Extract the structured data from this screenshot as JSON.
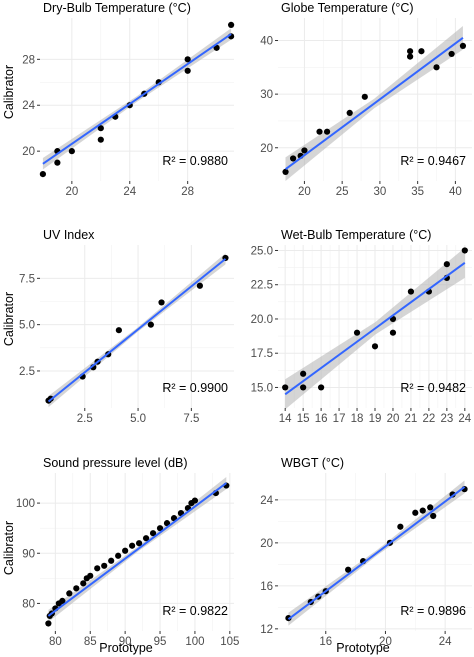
{
  "y_axis_label": "Calibrator",
  "x_axis_label": "Prototype",
  "colors": {
    "panel_background": "#ffffff",
    "points": "#000000",
    "fit_line": "#3366ff",
    "confidence_band": "#b3b3b3",
    "grid": "#ebebeb"
  },
  "chart_data": [
    {
      "type": "scatter",
      "title": "Dry-Bulb Temperature (°C)",
      "r2_label": "R² = 0.9880",
      "xlim": [
        17.8,
        31.2
      ],
      "ylim": [
        17.4,
        31.6
      ],
      "xticks": [
        20,
        24,
        28
      ],
      "yticks": [
        20,
        24,
        28
      ],
      "xticklabels": [
        "20",
        "24",
        "28"
      ],
      "yticklabels": [
        "20",
        "24",
        "28"
      ],
      "fit": {
        "x0": 18,
        "y0": 18.9,
        "x1": 31,
        "y1": 30.2
      },
      "band_halfwidth": [
        0.5,
        0.25,
        0.5
      ],
      "x": [
        18,
        19,
        19,
        20,
        22,
        22,
        23,
        24,
        25,
        26,
        28,
        28,
        30,
        31,
        31
      ],
      "y": [
        18,
        19,
        20,
        20,
        21,
        22,
        23,
        24,
        25,
        26,
        27,
        28,
        29,
        30,
        31
      ]
    },
    {
      "type": "scatter",
      "title": "Globe Temperature (°C)",
      "r2_label": "R² = 0.9467",
      "xlim": [
        16.5,
        42.2
      ],
      "ylim": [
        13.8,
        44.2
      ],
      "xticks": [
        20,
        25,
        30,
        35,
        40
      ],
      "yticks": [
        20,
        30,
        40
      ],
      "xticklabels": [
        "20",
        "25",
        "30",
        "35",
        "40"
      ],
      "yticklabels": [
        "20",
        "30",
        "40"
      ],
      "fit": {
        "x0": 17.5,
        "y0": 16.0,
        "x1": 41,
        "y1": 40.5
      },
      "band_halfwidth": [
        2.2,
        0.9,
        2.2
      ],
      "x": [
        17.5,
        18.5,
        19.5,
        20.0,
        22.0,
        23.0,
        26.0,
        28.0,
        34.0,
        34.0,
        35.5,
        37.5,
        39.5,
        41.0
      ],
      "y": [
        15.5,
        18.0,
        18.5,
        19.5,
        23.0,
        23.0,
        26.5,
        29.5,
        37.0,
        38.0,
        38.0,
        35.0,
        37.5,
        39.0
      ]
    },
    {
      "type": "scatter",
      "title": "UV Index",
      "r2_label": "R² = 0.9900",
      "xlim": [
        0.4,
        9.5
      ],
      "ylim": [
        0.5,
        9.3
      ],
      "xticks": [
        2.5,
        5.0,
        7.5
      ],
      "yticks": [
        2.5,
        5.0,
        7.5
      ],
      "xticklabels": [
        "2.5",
        "5.0",
        "7.5"
      ],
      "yticklabels": [
        "2.5",
        "5.0",
        "7.5"
      ],
      "fit": {
        "x0": 0.8,
        "y0": 0.85,
        "x1": 9.1,
        "y1": 8.55
      },
      "band_halfwidth": [
        0.3,
        0.12,
        0.3
      ],
      "x": [
        0.8,
        0.9,
        2.4,
        2.9,
        3.1,
        3.6,
        4.1,
        5.6,
        6.1,
        7.9,
        9.1
      ],
      "y": [
        0.9,
        1.0,
        2.2,
        2.7,
        3.0,
        3.4,
        4.7,
        5.0,
        6.2,
        7.1,
        8.6
      ]
    },
    {
      "type": "scatter",
      "title": "Wet-Bulb Temperature (°C)",
      "r2_label": "R² = 0.9482",
      "xlim": [
        13.6,
        24.4
      ],
      "ylim": [
        13.5,
        25.4
      ],
      "xticks": [
        14,
        15,
        16,
        17,
        18,
        19,
        20,
        21,
        22,
        23,
        24
      ],
      "yticks": [
        15.0,
        17.5,
        20.0,
        22.5,
        25.0
      ],
      "xticklabels": [
        "14",
        "15",
        "16",
        "17",
        "18",
        "19",
        "20",
        "21",
        "22",
        "23",
        "24"
      ],
      "yticklabels": [
        "15.0",
        "17.5",
        "20.0",
        "22.5",
        "25.0"
      ],
      "fit": {
        "x0": 14,
        "y0": 14.5,
        "x1": 24,
        "y1": 24.1
      },
      "band_halfwidth": [
        1.1,
        0.45,
        1.1
      ],
      "x": [
        14,
        15,
        15,
        16,
        18,
        19,
        20,
        20,
        21,
        22,
        23,
        23,
        24
      ],
      "y": [
        15,
        15,
        16,
        15,
        19,
        18,
        19,
        20,
        22,
        22,
        23,
        24,
        25
      ]
    },
    {
      "type": "scatter",
      "title": "Sound pressure level (dB)",
      "r2_label": "R² = 0.9822",
      "xlim": [
        77.8,
        105.6
      ],
      "ylim": [
        74.5,
        106.0
      ],
      "xticks": [
        80,
        85,
        90,
        95,
        100,
        105
      ],
      "yticks": [
        80,
        90,
        100
      ],
      "xticklabels": [
        "80",
        "85",
        "90",
        "95",
        "100",
        "105"
      ],
      "yticklabels": [
        "80",
        "90",
        "100"
      ],
      "fit": {
        "x0": 79,
        "y0": 77.5,
        "x1": 104.5,
        "y1": 104.0
      },
      "band_halfwidth": [
        1.2,
        0.5,
        1.2
      ],
      "x": [
        79.0,
        79.2,
        79.5,
        80.0,
        80.5,
        81.0,
        82.0,
        83.0,
        84.0,
        84.5,
        85.0,
        86.0,
        87.0,
        88.0,
        89.0,
        90.0,
        91.0,
        92.0,
        93.0,
        94.0,
        95.0,
        96.0,
        97.0,
        98.0,
        99.0,
        99.5,
        100.0,
        103.0,
        104.5
      ],
      "y": [
        76.0,
        77.5,
        78.0,
        79.0,
        80.0,
        80.5,
        82.0,
        83.0,
        84.0,
        85.0,
        85.5,
        87.0,
        87.5,
        88.5,
        89.5,
        90.5,
        91.5,
        92.0,
        93.0,
        94.0,
        95.0,
        96.0,
        97.0,
        98.0,
        99.0,
        100.0,
        100.5,
        102.0,
        103.5
      ]
    },
    {
      "type": "scatter",
      "title": "WBGT (°C)",
      "r2_label": "R² = 0.9896",
      "xlim": [
        12.8,
        25.8
      ],
      "ylim": [
        11.8,
        26.5
      ],
      "xticks": [
        16,
        20,
        24
      ],
      "yticks": [
        12,
        16,
        20,
        24
      ],
      "xticklabels": [
        "16",
        "20",
        "24"
      ],
      "yticklabels": [
        "12",
        "16",
        "20",
        "24"
      ],
      "fit": {
        "x0": 13.5,
        "y0": 12.9,
        "x1": 25.3,
        "y1": 25.2
      },
      "band_halfwidth": [
        0.6,
        0.25,
        0.6
      ],
      "x": [
        13.5,
        15.0,
        15.5,
        16.0,
        17.5,
        18.5,
        20.3,
        21.0,
        22.0,
        22.5,
        23.0,
        23.2,
        24.5,
        25.3
      ],
      "y": [
        13.0,
        14.5,
        15.0,
        15.5,
        17.5,
        18.3,
        20.0,
        21.5,
        22.8,
        23.0,
        23.3,
        22.5,
        24.5,
        25.0
      ]
    }
  ]
}
